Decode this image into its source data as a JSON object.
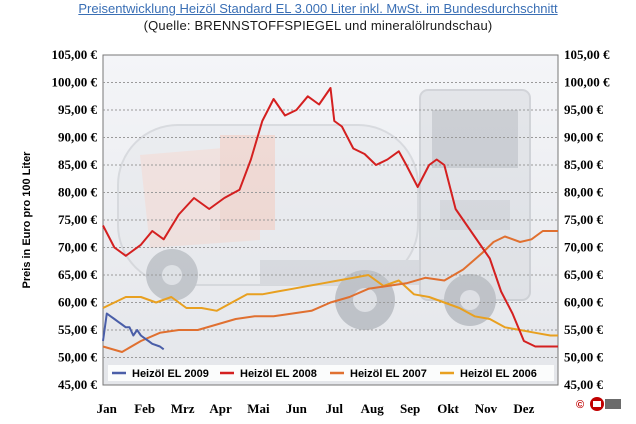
{
  "chart_data": {
    "type": "line",
    "title": "Preisentwicklung Heizöl Standard EL 3.000 Liter inkl. MwSt. im Bundesdurchschnitt",
    "subtitle": "(Quelle: BRENNSTOFFSPIEGEL und mineralölrundschau)",
    "ylabel": "Preis in Euro pro 100 Liter",
    "ylim": [
      45,
      105
    ],
    "yticks": [
      "45,00 €",
      "50,00 €",
      "55,00 €",
      "60,00 €",
      "65,00 €",
      "70,00 €",
      "75,00 €",
      "80,00 €",
      "85,00 €",
      "90,00 €",
      "95,00 €",
      "100,00 €",
      "105,00 €"
    ],
    "xticks": [
      "Jan",
      "Feb",
      "Mrz",
      "Apr",
      "Mai",
      "Jun",
      "Jul",
      "Aug",
      "Sep",
      "Okt",
      "Nov",
      "Dez"
    ],
    "xlim": [
      0,
      12
    ],
    "grid": true,
    "legend": "bottom",
    "series": [
      {
        "name": "Heizöl EL 2009",
        "color": "#4a5ea8",
        "x": [
          0,
          0.1,
          0.2,
          0.3,
          0.4,
          0.5,
          0.6,
          0.7,
          0.8,
          0.9,
          1.0,
          1.1,
          1.2,
          1.3,
          1.5,
          1.6
        ],
        "values": [
          53,
          58,
          57.5,
          57,
          56.5,
          56,
          55.5,
          55.5,
          54,
          55,
          54,
          53.5,
          53,
          52.5,
          52,
          51.5
        ]
      },
      {
        "name": "Heizöl EL 2008",
        "color": "#d42020",
        "x": [
          0,
          0.3,
          0.6,
          1.0,
          1.3,
          1.6,
          2.0,
          2.4,
          2.8,
          3.2,
          3.6,
          3.9,
          4.2,
          4.5,
          4.8,
          5.1,
          5.4,
          5.7,
          6.0,
          6.1,
          6.3,
          6.6,
          6.9,
          7.2,
          7.5,
          7.8,
          8.0,
          8.3,
          8.6,
          8.8,
          9.0,
          9.3,
          9.6,
          9.9,
          10.2,
          10.5,
          10.8,
          11.1,
          11.4,
          11.7,
          12.0
        ],
        "values": [
          74,
          70,
          68.5,
          70.5,
          73,
          71.5,
          76,
          79,
          77,
          79,
          80.5,
          86,
          93,
          97,
          94,
          95,
          97.5,
          96,
          99,
          93,
          92,
          88,
          87,
          85,
          86,
          87.5,
          85,
          81,
          85,
          86,
          85,
          77,
          74,
          71,
          68,
          62,
          58,
          53,
          52,
          52,
          52
        ]
      },
      {
        "name": "Heizöl EL 2007",
        "color": "#e07030",
        "x": [
          0,
          0.5,
          1.0,
          1.5,
          2.0,
          2.5,
          3.0,
          3.5,
          4.0,
          4.5,
          5.0,
          5.5,
          6.0,
          6.5,
          7.0,
          7.5,
          8.0,
          8.5,
          9.0,
          9.5,
          10.0,
          10.3,
          10.6,
          11.0,
          11.3,
          11.6,
          12.0
        ],
        "values": [
          52,
          51,
          53,
          54.5,
          55,
          55,
          56,
          57,
          57.5,
          57.5,
          58,
          58.5,
          60,
          61,
          62.5,
          63,
          63.5,
          64.5,
          64,
          66,
          69,
          71,
          72,
          71,
          71.5,
          73,
          73
        ]
      },
      {
        "name": "Heizöl EL 2006",
        "color": "#e8a020",
        "x": [
          0,
          0.3,
          0.6,
          1.0,
          1.4,
          1.8,
          2.2,
          2.6,
          3.0,
          3.4,
          3.8,
          4.2,
          4.6,
          5.0,
          5.4,
          5.8,
          6.2,
          6.6,
          7.0,
          7.4,
          7.8,
          8.2,
          8.6,
          9.0,
          9.4,
          9.8,
          10.2,
          10.6,
          11.0,
          11.4,
          11.8,
          12.0
        ],
        "values": [
          59,
          60,
          61,
          61,
          60,
          61,
          59,
          59,
          58.5,
          60,
          61.5,
          61.5,
          62,
          62.5,
          63,
          63.5,
          64,
          64.5,
          65,
          63,
          64,
          61.5,
          61,
          60,
          59,
          57.5,
          57,
          55.5,
          55,
          54.5,
          54,
          54
        ]
      }
    ]
  },
  "copyright": "©"
}
